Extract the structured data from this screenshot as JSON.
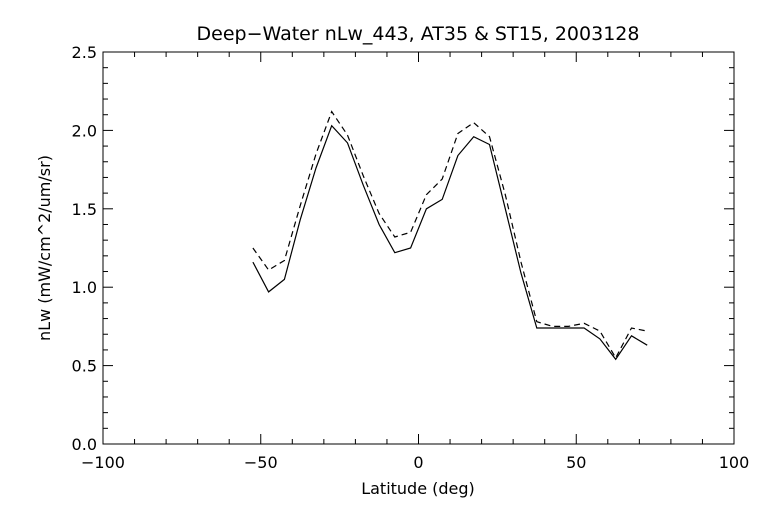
{
  "chart_data": {
    "type": "line",
    "title": "Deep−Water nLw_443, AT35 & ST15, 2003128",
    "xlabel": "Latitude (deg)",
    "ylabel": "nLw (mW/cm^2/um/sr)",
    "xlim": [
      -100,
      100
    ],
    "ylim": [
      0,
      2.5
    ],
    "x_ticks": [
      -100,
      -50,
      0,
      50,
      100
    ],
    "x_tick_labels": [
      "−100",
      "−50",
      "0",
      "50",
      "100"
    ],
    "y_ticks": [
      0.0,
      0.5,
      1.0,
      1.5,
      2.0,
      2.5
    ],
    "y_tick_labels": [
      "0.0",
      "0.5",
      "1.0",
      "1.5",
      "2.0",
      "2.5"
    ],
    "grid": false,
    "series": [
      {
        "style": "solid",
        "x": [
          -52.5,
          -47.5,
          -42.5,
          -37.5,
          -32.5,
          -27.5,
          -22.5,
          -17.5,
          -12.5,
          -7.5,
          -2.5,
          2.5,
          7.5,
          12.5,
          17.5,
          22.5,
          27.5,
          32.5,
          37.5,
          42.5,
          47.5,
          52.5,
          57.5,
          62.5,
          67.5,
          72.5
        ],
        "values": [
          1.16,
          0.97,
          1.05,
          1.43,
          1.76,
          2.03,
          1.92,
          1.65,
          1.4,
          1.22,
          1.25,
          1.5,
          1.56,
          1.84,
          1.96,
          1.91,
          1.5,
          1.09,
          0.74,
          0.74,
          0.74,
          0.74,
          0.67,
          0.54,
          0.69,
          0.63
        ]
      },
      {
        "style": "dashed",
        "x": [
          -52.5,
          -47.5,
          -42.5,
          -37.5,
          -32.5,
          -27.5,
          -22.5,
          -17.5,
          -12.5,
          -7.5,
          -2.5,
          2.5,
          7.5,
          12.5,
          17.5,
          22.5,
          27.5,
          32.5,
          37.5,
          42.5,
          47.5,
          52.5,
          57.5,
          62.5,
          67.5,
          72.5
        ],
        "values": [
          1.25,
          1.11,
          1.17,
          1.52,
          1.85,
          2.12,
          1.97,
          1.71,
          1.47,
          1.32,
          1.35,
          1.59,
          1.69,
          1.98,
          2.05,
          1.96,
          1.59,
          1.16,
          0.78,
          0.75,
          0.75,
          0.77,
          0.72,
          0.55,
          0.74,
          0.72
        ]
      }
    ]
  }
}
